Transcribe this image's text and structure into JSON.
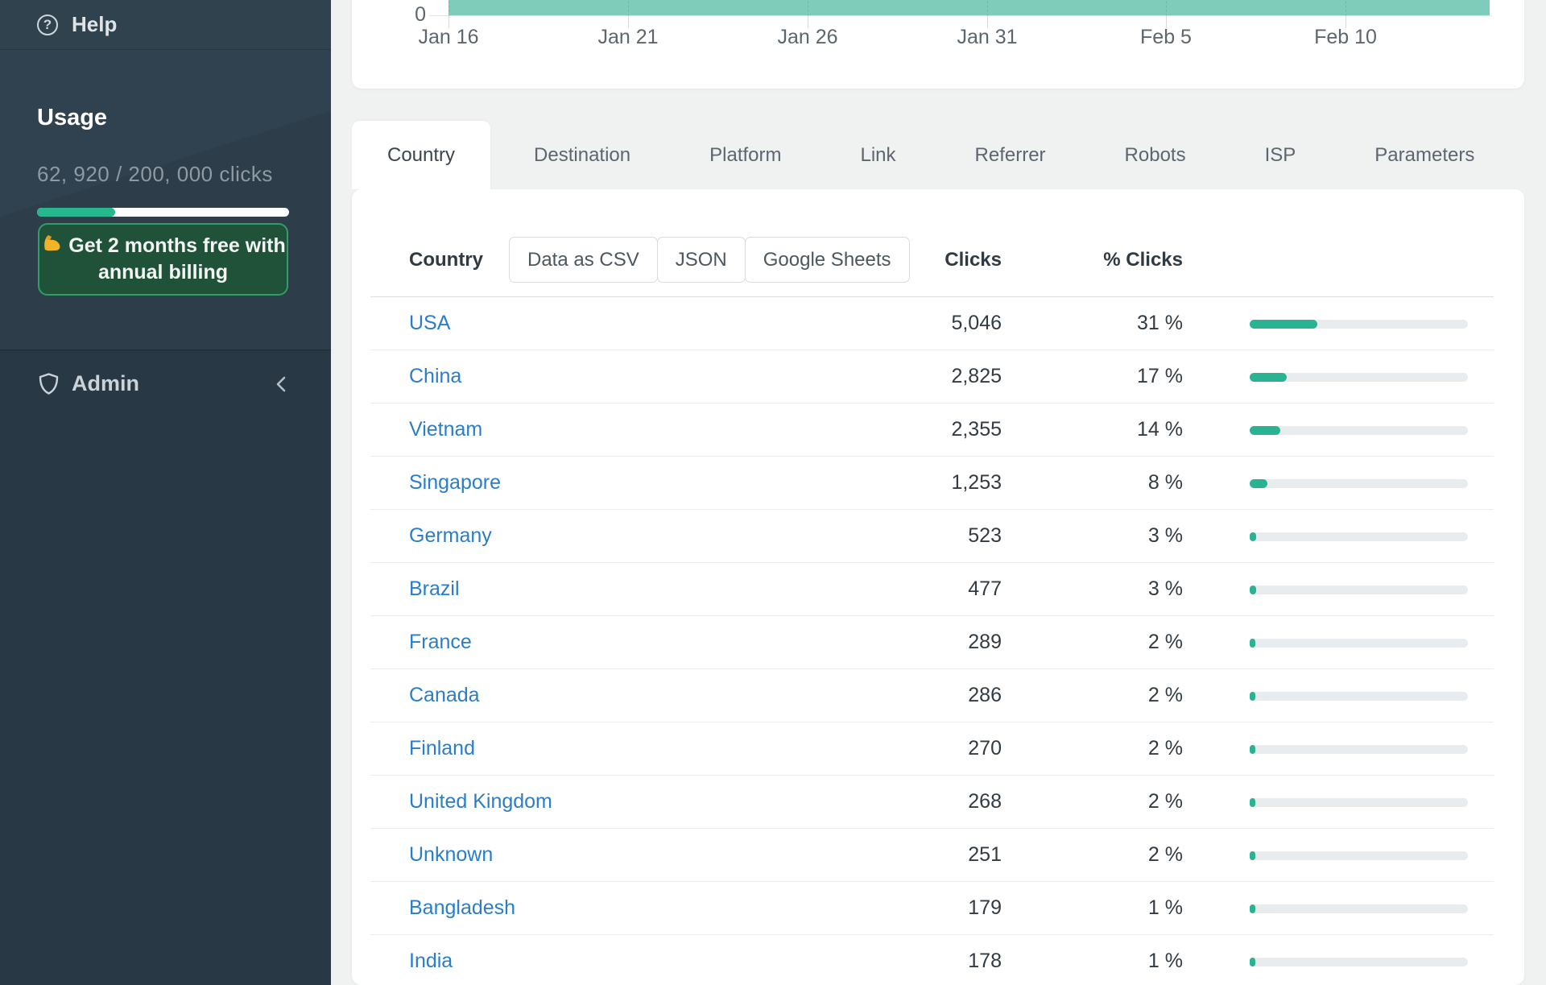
{
  "colors": {
    "chart_area_fill": "#80ccba",
    "bar_fill": "#2ab392",
    "bar_track": "#e9ecee",
    "link_blue": "#2a7dc9",
    "sidebar_bg": "#2e3f4d",
    "upgrade_bg": "#20523a",
    "upgrade_border": "#2f9e68",
    "usage_progress_fill": "#27b78c",
    "chat_bubble": "#f0325f"
  },
  "sidebar": {
    "help_label": "Help",
    "usage_title": "Usage",
    "usage_text": "62, 920 / 200, 000 clicks",
    "usage_pct": 31,
    "upgrade_emoji": "muscle-flex",
    "upgrade_line1": "Get 2 months free with",
    "upgrade_line2": "annual billing",
    "admin_label": "Admin"
  },
  "chart_data": {
    "type": "area",
    "x_tick_labels": [
      "Jan 16",
      "Jan 21",
      "Jan 26",
      "Jan 31",
      "Feb 5",
      "Feb 10"
    ],
    "visible_y_tick_labels": [
      "0"
    ],
    "grid": "dashed-vertical-at-ticks",
    "area_color": "#80ccba"
  },
  "tabs": {
    "items": [
      {
        "label": "Country",
        "active": true
      },
      {
        "label": "Destination",
        "active": false
      },
      {
        "label": "Platform",
        "active": false
      },
      {
        "label": "Link",
        "active": false
      },
      {
        "label": "Referrer",
        "active": false
      },
      {
        "label": "Robots",
        "active": false
      },
      {
        "label": "ISP",
        "active": false
      },
      {
        "label": "Parameters",
        "active": false
      }
    ]
  },
  "table": {
    "col_country": "Country",
    "col_clicks": "Clicks",
    "col_pct": "% Clicks",
    "export_buttons": [
      "Data as CSV",
      "JSON",
      "Google Sheets"
    ],
    "rows": [
      {
        "country": "USA",
        "clicks": "5,046",
        "pct": 31,
        "pct_label": "31 %"
      },
      {
        "country": "China",
        "clicks": "2,825",
        "pct": 17,
        "pct_label": "17 %"
      },
      {
        "country": "Vietnam",
        "clicks": "2,355",
        "pct": 14,
        "pct_label": "14 %"
      },
      {
        "country": "Singapore",
        "clicks": "1,253",
        "pct": 8,
        "pct_label": "8 %"
      },
      {
        "country": "Germany",
        "clicks": "523",
        "pct": 3,
        "pct_label": "3 %"
      },
      {
        "country": "Brazil",
        "clicks": "477",
        "pct": 3,
        "pct_label": "3 %"
      },
      {
        "country": "France",
        "clicks": "289",
        "pct": 2,
        "pct_label": "2 %"
      },
      {
        "country": "Canada",
        "clicks": "286",
        "pct": 2,
        "pct_label": "2 %"
      },
      {
        "country": "Finland",
        "clicks": "270",
        "pct": 2,
        "pct_label": "2 %"
      },
      {
        "country": "United Kingdom",
        "clicks": "268",
        "pct": 2,
        "pct_label": "2 %"
      },
      {
        "country": "Unknown",
        "clicks": "251",
        "pct": 2,
        "pct_label": "2 %"
      },
      {
        "country": "Bangladesh",
        "clicks": "179",
        "pct": 1,
        "pct_label": "1 %"
      },
      {
        "country": "India",
        "clicks": "178",
        "pct": 1,
        "pct_label": "1 %"
      }
    ]
  }
}
